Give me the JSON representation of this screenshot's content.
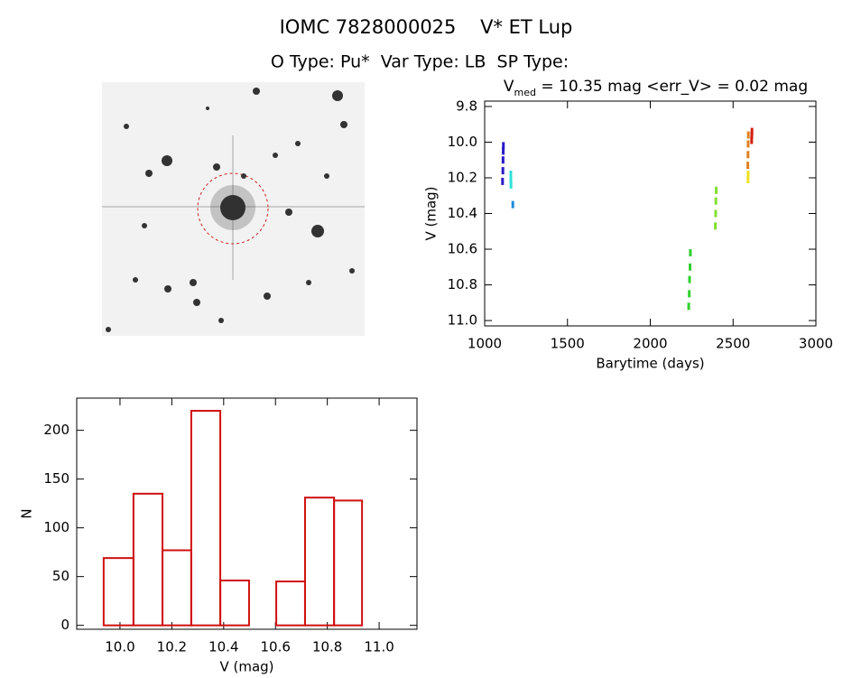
{
  "header": {
    "title": "IOMC 7828000025    V* ET Lup",
    "subtitle": "O Type: Pu*  Var Type: LB  SP Type:"
  },
  "chart_data": [
    {
      "type": "scatter",
      "title_parts": [
        "V",
        "med",
        " = 10.35 mag <err_V> = 0.02 mag"
      ],
      "x_label": "Barytime (days)",
      "y_label": "V (mag)",
      "xlim": [
        1000,
        3000
      ],
      "ylim": [
        11.03,
        9.77
      ],
      "xticks": [
        1000,
        1500,
        2000,
        2500,
        3000
      ],
      "yticks": [
        9.8,
        {
          "value": 10,
          "label": "10.0"
        },
        10.2,
        10.4,
        10.6,
        10.8,
        {
          "value": 11,
          "label": "11.0"
        }
      ],
      "series": [
        {
          "color": "#2a1ac8",
          "x": [
            1108,
            1110,
            1111,
            1112,
            1113
          ],
          "values": [
            10.22,
            10.16,
            10.1,
            10.05,
            10.02
          ]
        },
        {
          "color": "#1a8cd8",
          "x": [
            1170
          ],
          "values": [
            10.35
          ]
        },
        {
          "color": "#30e0d8",
          "x": [
            1158,
            1158,
            1159
          ],
          "values": [
            10.18,
            10.21,
            10.24
          ]
        },
        {
          "color": "#30d030",
          "x": [
            2232,
            2235,
            2237,
            2240,
            2242
          ],
          "values": [
            10.92,
            10.85,
            10.77,
            10.7,
            10.62
          ]
        },
        {
          "color": "#80e030",
          "x": [
            2393,
            2395,
            2396,
            2398
          ],
          "values": [
            10.47,
            10.4,
            10.33,
            10.27
          ]
        },
        {
          "color": "#e08020",
          "x": [
            2589,
            2590,
            2591,
            2592
          ],
          "values": [
            10.13,
            10.07,
            10.01,
            9.96
          ]
        },
        {
          "color": "#f0e020",
          "x": [
            2590,
            2591
          ],
          "values": [
            10.21,
            10.18
          ]
        },
        {
          "color": "#d02010",
          "x": [
            2612,
            2613,
            2614
          ],
          "values": [
            9.99,
            9.96,
            9.94
          ]
        }
      ]
    },
    {
      "type": "histogram",
      "x_label": "V (mag)",
      "y_label": "N",
      "color": "#d01010",
      "bins": [
        9.937,
        10.052,
        10.164,
        10.275,
        10.387,
        10.498,
        10.603,
        10.714,
        10.826,
        10.934
      ],
      "values": [
        69,
        135,
        77,
        220,
        46,
        0,
        45,
        131,
        128
      ],
      "xlim": [
        9.833,
        11.146
      ],
      "ylim": [
        -4,
        233
      ],
      "xticks": [
        {
          "value": 10,
          "label": "10.0"
        },
        10.2,
        10.4,
        10.6,
        10.8,
        {
          "value": 11,
          "label": "11.0"
        }
      ],
      "yticks": [
        0,
        50,
        100,
        150,
        200
      ]
    }
  ]
}
